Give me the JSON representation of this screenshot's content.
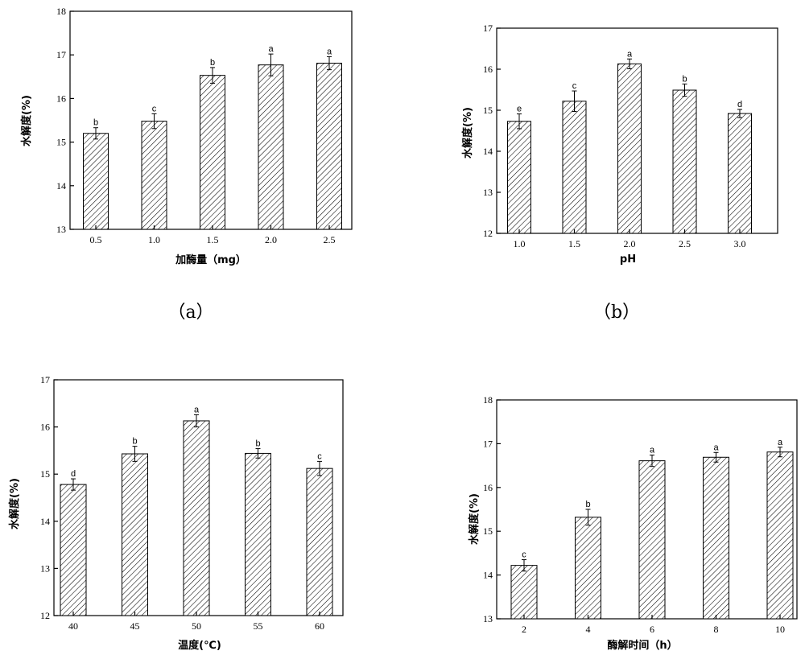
{
  "chart_data": [
    {
      "type": "bar",
      "panel_label": "（a）",
      "xlabel": "加酶量（mg）",
      "ylabel": "水解度(%)",
      "categories": [
        "0.5",
        "1.0",
        "1.5",
        "2.0",
        "2.5"
      ],
      "values": [
        15.2,
        15.48,
        16.53,
        16.77,
        16.81
      ],
      "errors": [
        0.13,
        0.17,
        0.18,
        0.25,
        0.15
      ],
      "letters": [
        "b",
        "c",
        "b",
        "a",
        "a"
      ],
      "ylim": [
        13,
        18
      ],
      "yticks": [
        "13",
        "14",
        "15",
        "16",
        "17",
        "18"
      ]
    },
    {
      "type": "bar",
      "panel_label": "（b）",
      "xlabel": "pH",
      "ylabel": "水解度(%)",
      "categories": [
        "1.0",
        "1.5",
        "2.0",
        "2.5",
        "3.0"
      ],
      "values": [
        14.73,
        15.22,
        16.13,
        15.49,
        14.92
      ],
      "errors": [
        0.18,
        0.25,
        0.12,
        0.15,
        0.1
      ],
      "letters": [
        "e",
        "c",
        "a",
        "b",
        "d"
      ],
      "ylim": [
        12,
        17
      ],
      "yticks": [
        "12",
        "13",
        "14",
        "15",
        "16",
        "17"
      ]
    },
    {
      "type": "bar",
      "panel_label": "",
      "xlabel": "温度(℃)",
      "ylabel": "水解度(%)",
      "categories": [
        "40",
        "45",
        "50",
        "55",
        "60"
      ],
      "values": [
        14.78,
        15.43,
        16.13,
        15.44,
        15.12
      ],
      "errors": [
        0.12,
        0.16,
        0.13,
        0.1,
        0.15
      ],
      "letters": [
        "d",
        "b",
        "a",
        "b",
        "c"
      ],
      "ylim": [
        12,
        17
      ],
      "yticks": [
        "12",
        "13",
        "14",
        "15",
        "16",
        "17"
      ]
    },
    {
      "type": "bar",
      "panel_label": "",
      "xlabel": "酶解时间（h）",
      "ylabel": "水解度(%)",
      "categories": [
        "2",
        "4",
        "6",
        "8",
        "10"
      ],
      "values": [
        14.22,
        15.32,
        16.61,
        16.69,
        16.81
      ],
      "errors": [
        0.13,
        0.18,
        0.13,
        0.11,
        0.11
      ],
      "letters": [
        "c",
        "b",
        "a",
        "a",
        "a"
      ],
      "ylim": [
        13,
        18
      ],
      "yticks": [
        "13",
        "14",
        "15",
        "16",
        "17",
        "18"
      ]
    }
  ]
}
